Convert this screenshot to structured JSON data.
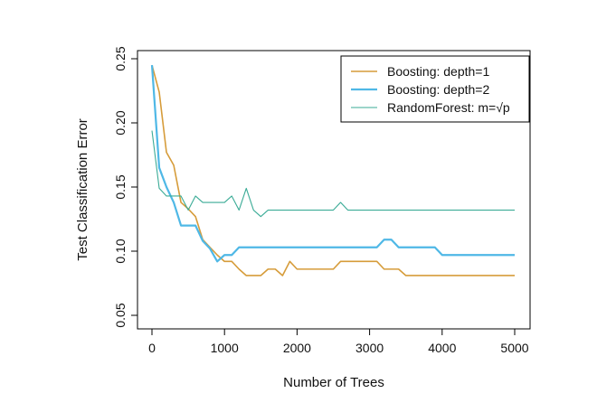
{
  "chart_data": {
    "type": "line",
    "title": "",
    "xlabel": "Number of Trees",
    "ylabel": "Test Classification Error",
    "xlim": [
      0,
      5000
    ],
    "ylim": [
      0.05,
      0.25
    ],
    "xticks": [
      0,
      1000,
      2000,
      3000,
      4000,
      5000
    ],
    "xtick_labels": [
      "0",
      "1000",
      "2000",
      "3000",
      "4000",
      "5000"
    ],
    "yticks": [
      0.05,
      0.1,
      0.15,
      0.2,
      0.25
    ],
    "ytick_labels": [
      "0.05",
      "0.10",
      "0.15",
      "0.20",
      "0.25"
    ],
    "grid": false,
    "legend_position": "top-right",
    "series": [
      {
        "name": "Boosting: depth=1",
        "color": "#d69c3a",
        "line_width": 1.6,
        "x": [
          0,
          100,
          200,
          300,
          400,
          500,
          600,
          700,
          800,
          900,
          1000,
          1100,
          1200,
          1300,
          1400,
          1500,
          1600,
          1700,
          1800,
          1900,
          2000,
          2100,
          2200,
          2300,
          2400,
          2500,
          2600,
          2700,
          2800,
          2900,
          3000,
          3100,
          3200,
          3300,
          3400,
          3500,
          3600,
          3700,
          3800,
          3900,
          4000,
          4100,
          4200,
          4300,
          4400,
          4500,
          4600,
          4700,
          4800,
          4900,
          5000
        ],
        "y": [
          0.245,
          0.224,
          0.177,
          0.167,
          0.138,
          0.133,
          0.127,
          0.109,
          0.103,
          0.097,
          0.092,
          0.092,
          0.086,
          0.081,
          0.081,
          0.081,
          0.086,
          0.086,
          0.081,
          0.092,
          0.086,
          0.086,
          0.086,
          0.086,
          0.086,
          0.086,
          0.092,
          0.092,
          0.092,
          0.092,
          0.092,
          0.092,
          0.086,
          0.086,
          0.086,
          0.081,
          0.081,
          0.081,
          0.081,
          0.081,
          0.081,
          0.081,
          0.081,
          0.081,
          0.081,
          0.081,
          0.081,
          0.081,
          0.081,
          0.081,
          0.081
        ]
      },
      {
        "name": "Boosting: depth=2",
        "color": "#4fb8e6",
        "line_width": 2.2,
        "x": [
          0,
          100,
          200,
          300,
          400,
          500,
          600,
          700,
          800,
          900,
          1000,
          1100,
          1200,
          1300,
          1400,
          1500,
          1600,
          1700,
          1800,
          1900,
          2000,
          2100,
          2200,
          2300,
          2400,
          2500,
          2600,
          2700,
          2800,
          2900,
          3000,
          3100,
          3200,
          3300,
          3400,
          3500,
          3600,
          3700,
          3800,
          3900,
          4000,
          4100,
          4200,
          4300,
          4400,
          4500,
          4600,
          4700,
          4800,
          4900,
          5000
        ],
        "y": [
          0.245,
          0.165,
          0.15,
          0.138,
          0.12,
          0.12,
          0.12,
          0.108,
          0.102,
          0.092,
          0.097,
          0.097,
          0.103,
          0.103,
          0.103,
          0.103,
          0.103,
          0.103,
          0.103,
          0.103,
          0.103,
          0.103,
          0.103,
          0.103,
          0.103,
          0.103,
          0.103,
          0.103,
          0.103,
          0.103,
          0.103,
          0.103,
          0.109,
          0.109,
          0.103,
          0.103,
          0.103,
          0.103,
          0.103,
          0.103,
          0.097,
          0.097,
          0.097,
          0.097,
          0.097,
          0.097,
          0.097,
          0.097,
          0.097,
          0.097,
          0.097
        ]
      },
      {
        "name": "RandomForest: m=√p",
        "color": "#3aab96",
        "line_width": 1.1,
        "x": [
          0,
          100,
          200,
          300,
          400,
          500,
          600,
          700,
          800,
          900,
          1000,
          1100,
          1200,
          1300,
          1400,
          1500,
          1600,
          1700,
          1800,
          1900,
          2000,
          2100,
          2200,
          2300,
          2400,
          2500,
          2600,
          2700,
          2800,
          2900,
          3000,
          3100,
          3200,
          3300,
          3400,
          3500,
          3600,
          3700,
          3800,
          3900,
          4000,
          4100,
          4200,
          4300,
          4400,
          4500,
          4600,
          4700,
          4800,
          4900,
          5000
        ],
        "y": [
          0.194,
          0.149,
          0.143,
          0.143,
          0.143,
          0.132,
          0.143,
          0.138,
          0.138,
          0.138,
          0.138,
          0.143,
          0.132,
          0.149,
          0.132,
          0.127,
          0.132,
          0.132,
          0.132,
          0.132,
          0.132,
          0.132,
          0.132,
          0.132,
          0.132,
          0.132,
          0.138,
          0.132,
          0.132,
          0.132,
          0.132,
          0.132,
          0.132,
          0.132,
          0.132,
          0.132,
          0.132,
          0.132,
          0.132,
          0.132,
          0.132,
          0.132,
          0.132,
          0.132,
          0.132,
          0.132,
          0.132,
          0.132,
          0.132,
          0.132,
          0.132
        ]
      }
    ]
  }
}
